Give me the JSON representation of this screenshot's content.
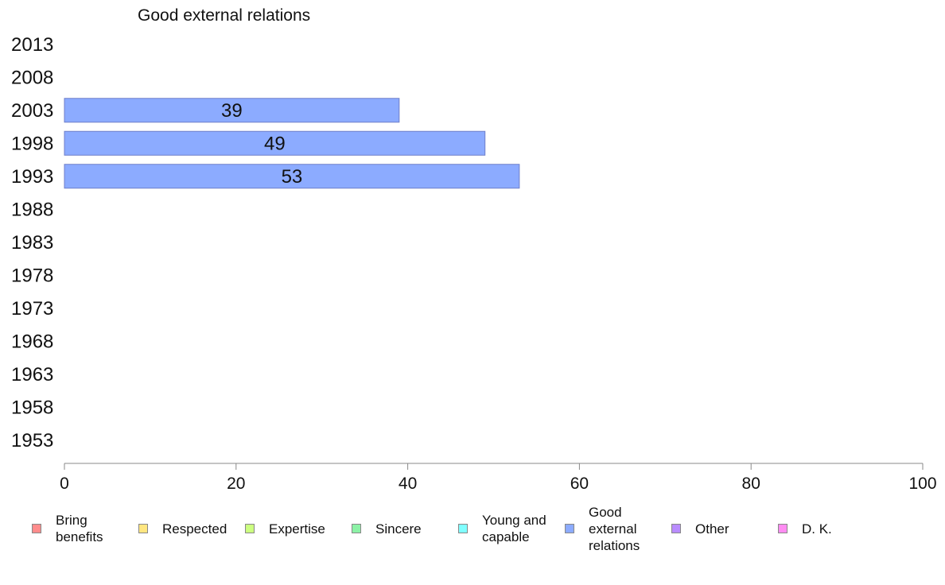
{
  "chart_data": {
    "type": "bar",
    "orientation": "horizontal",
    "title": "Good external relations",
    "categories": [
      "2013",
      "2008",
      "2003",
      "1998",
      "1993",
      "1988",
      "1983",
      "1978",
      "1973",
      "1968",
      "1963",
      "1958",
      "1953"
    ],
    "series": [
      {
        "name": "Bring benefits",
        "color": "#ff8c8c",
        "values": [
          null,
          null,
          null,
          null,
          null,
          null,
          null,
          null,
          null,
          null,
          null,
          null,
          null
        ]
      },
      {
        "name": "Respected",
        "color": "#ffe680",
        "values": [
          null,
          null,
          null,
          null,
          null,
          null,
          null,
          null,
          null,
          null,
          null,
          null,
          null
        ]
      },
      {
        "name": "Expertise",
        "color": "#ccff80",
        "values": [
          null,
          null,
          null,
          null,
          null,
          null,
          null,
          null,
          null,
          null,
          null,
          null,
          null
        ]
      },
      {
        "name": "Sincere",
        "color": "#8cf2a6",
        "values": [
          null,
          null,
          null,
          null,
          null,
          null,
          null,
          null,
          null,
          null,
          null,
          null,
          null
        ]
      },
      {
        "name": "Young and capable",
        "color": "#80ffff",
        "values": [
          null,
          null,
          null,
          null,
          null,
          null,
          null,
          null,
          null,
          null,
          null,
          null,
          null
        ]
      },
      {
        "name": "Good external relations",
        "color": "#8cabff",
        "values": [
          null,
          null,
          39,
          49,
          53,
          null,
          null,
          null,
          null,
          null,
          null,
          null,
          null
        ]
      },
      {
        "name": "Other",
        "color": "#b98cff",
        "values": [
          null,
          null,
          null,
          null,
          null,
          null,
          null,
          null,
          null,
          null,
          null,
          null,
          null
        ]
      },
      {
        "name": "D. K.",
        "color": "#ff8cf2",
        "values": [
          null,
          null,
          null,
          null,
          null,
          null,
          null,
          null,
          null,
          null,
          null,
          null,
          null
        ]
      }
    ],
    "xlim": [
      0,
      100
    ],
    "xticks": [
      0,
      20,
      40,
      60,
      80,
      100
    ],
    "grid": false,
    "legend_position": "bottom"
  },
  "legend": {
    "items": [
      {
        "label": "Bring\nbenefits",
        "color": "#ff8c8c"
      },
      {
        "label": "Respected",
        "color": "#ffe680"
      },
      {
        "label": "Expertise",
        "color": "#ccff80"
      },
      {
        "label": "Sincere",
        "color": "#8cf2a6"
      },
      {
        "label": "Young and\ncapable",
        "color": "#80ffff"
      },
      {
        "label": "Good\nexternal\nrelations",
        "color": "#8cabff"
      },
      {
        "label": "Other",
        "color": "#b98cff"
      },
      {
        "label": "D. K.",
        "color": "#ff8cf2"
      }
    ]
  }
}
